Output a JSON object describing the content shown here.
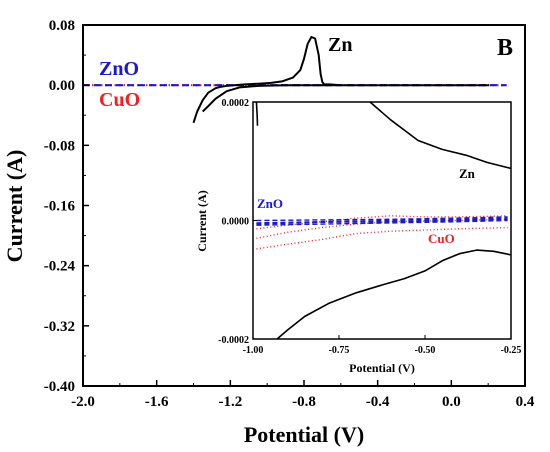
{
  "chart_data": [
    {
      "type": "line",
      "panel_label": "B",
      "xlabel": "Potential (V)",
      "ylabel": "Current (A)",
      "xlim": [
        -2.0,
        0.4
      ],
      "ylim": [
        -0.4,
        0.08
      ],
      "xticks": [
        "-2.0",
        "-1.6",
        "-1.2",
        "-0.8",
        "-0.4",
        "0.0",
        "0.4"
      ],
      "yticks": [
        "0.08",
        "0.00",
        "-0.08",
        "-0.16",
        "-0.24",
        "-0.32",
        "-0.40"
      ],
      "legend": [
        "ZnO",
        "CuO"
      ],
      "series": [
        {
          "name": "Zn",
          "color": "#000000",
          "style": "solid",
          "x": [
            -1.4,
            -1.38,
            -1.35,
            -1.32,
            -1.28,
            -1.25,
            -1.22,
            -1.18,
            -1.12,
            -1.05,
            -0.98,
            -0.92,
            -0.86,
            -0.82,
            -0.8,
            -0.78,
            -0.76,
            -0.74,
            -0.72,
            -0.71,
            -0.7,
            -0.69,
            -0.66,
            -0.6,
            -0.4,
            0.0,
            0.2,
            0.0,
            -0.4,
            -0.7,
            -0.9,
            -1.05,
            -1.15,
            -1.22,
            -1.28,
            -1.32,
            -1.35
          ],
          "y": [
            -0.05,
            -0.035,
            -0.02,
            -0.01,
            -0.004,
            -0.002,
            -0.001,
            0.0,
            0.001,
            0.002,
            0.003,
            0.005,
            0.01,
            0.02,
            0.035,
            0.055,
            0.064,
            0.062,
            0.04,
            0.015,
            0.004,
            0.001,
            0.001,
            0.0,
            0.0,
            0.0,
            0.0,
            0.0,
            0.0,
            0.0,
            0.0,
            -0.001,
            -0.003,
            -0.008,
            -0.018,
            -0.028,
            -0.035
          ]
        },
        {
          "name": "ZnO",
          "color": "#1a1acc",
          "style": "dash",
          "x": [
            -2.0,
            0.3
          ],
          "y": [
            0.0,
            0.0
          ]
        },
        {
          "name": "CuO",
          "color": "#ee2222",
          "style": "dot",
          "x": [
            -2.0,
            0.3
          ],
          "y": [
            0.0,
            0.0
          ]
        }
      ],
      "annotations": [
        {
          "text": "Zn",
          "color": "#000000"
        },
        {
          "text": "ZnO",
          "color": "#1a1acc"
        },
        {
          "text": "CuO",
          "color": "#ee2222"
        }
      ]
    },
    {
      "type": "line",
      "inset": true,
      "xlabel": "Potential (V)",
      "ylabel": "Current (A)",
      "xlim": [
        -1.0,
        -0.25
      ],
      "ylim": [
        -0.0002,
        0.0002
      ],
      "xticks": [
        "-1.00",
        "-0.75",
        "-0.50",
        "-0.25"
      ],
      "yticks": [
        "0.0002",
        "0.0000",
        "-0.0002"
      ],
      "series": [
        {
          "name": "Zn",
          "color": "#000000",
          "style": "solid",
          "segments": [
            {
              "x": [
                -0.99,
                -0.988,
                -0.987
              ],
              "y": [
                0.0002,
                0.00018,
                0.00016
              ]
            },
            {
              "x": [
                -0.66,
                -0.6,
                -0.52,
                -0.45,
                -0.38,
                -0.32,
                -0.25
              ],
              "y": [
                0.0002,
                0.00017,
                0.000135,
                0.00012,
                0.00011,
                9.8e-05,
                8.8e-05
              ]
            },
            {
              "x": [
                -0.93,
                -0.9,
                -0.85,
                -0.78,
                -0.7,
                -0.62,
                -0.56,
                -0.5,
                -0.45,
                -0.4,
                -0.35,
                -0.3,
                -0.25
              ],
              "y": [
                -0.0002,
                -0.000185,
                -0.000162,
                -0.00014,
                -0.000122,
                -0.000108,
                -9.8e-05,
                -8.5e-05,
                -6.8e-05,
                -5.6e-05,
                -5e-05,
                -5.2e-05,
                -5.8e-05
              ]
            }
          ]
        },
        {
          "name": "ZnO",
          "color": "#1a1acc",
          "style": "dash",
          "segments": [
            {
              "x": [
                -0.99,
                -0.8,
                -0.6,
                -0.4,
                -0.26
              ],
              "y": [
                -4e-06,
                -2e-06,
                0.0,
                2e-06,
                4e-06
              ]
            },
            {
              "x": [
                -0.99,
                -0.8,
                -0.6,
                -0.4,
                -0.26
              ],
              "y": [
                -8e-06,
                -6e-06,
                -4e-06,
                -2e-06,
                0.0
              ]
            },
            {
              "x": [
                -0.99,
                -0.8,
                -0.6,
                -0.4,
                -0.26
              ],
              "y": [
                0.0,
                1e-06,
                2e-06,
                4e-06,
                6e-06
              ]
            },
            {
              "x": [
                -0.99,
                -0.8,
                -0.6,
                -0.4,
                -0.26
              ],
              "y": [
                -6e-06,
                -3e-06,
                -2e-06,
                0.0,
                2e-06
              ]
            }
          ]
        },
        {
          "name": "CuO",
          "color": "#ee2222",
          "style": "dot",
          "segments": [
            {
              "x": [
                -0.99,
                -0.9,
                -0.8,
                -0.7,
                -0.6,
                -0.5,
                -0.4,
                -0.26
              ],
              "y": [
                -4.8e-05,
                -4e-05,
                -3.2e-05,
                -2.2e-05,
                -1.8e-05,
                -1.6e-05,
                -1.4e-05,
                -1.2e-05
              ]
            },
            {
              "x": [
                -0.99,
                -0.9,
                -0.8,
                -0.7,
                -0.6,
                -0.5,
                -0.4,
                -0.26
              ],
              "y": [
                -3e-05,
                -2e-05,
                -1.2e-05,
                -6e-06,
                -2e-06,
                -1e-06,
                0.0,
                2e-06
              ]
            },
            {
              "x": [
                -0.99,
                -0.9,
                -0.8,
                -0.7,
                -0.6,
                -0.5,
                -0.4,
                -0.26
              ],
              "y": [
                -1.4e-05,
                -8e-06,
                -2e-06,
                4e-06,
                8e-06,
                6e-06,
                6e-06,
                8e-06
              ]
            }
          ]
        }
      ],
      "annotations": [
        {
          "text": "Zn",
          "color": "#000000"
        },
        {
          "text": "ZnO",
          "color": "#1a1acc"
        },
        {
          "text": "CuO",
          "color": "#ee2222"
        }
      ]
    }
  ]
}
